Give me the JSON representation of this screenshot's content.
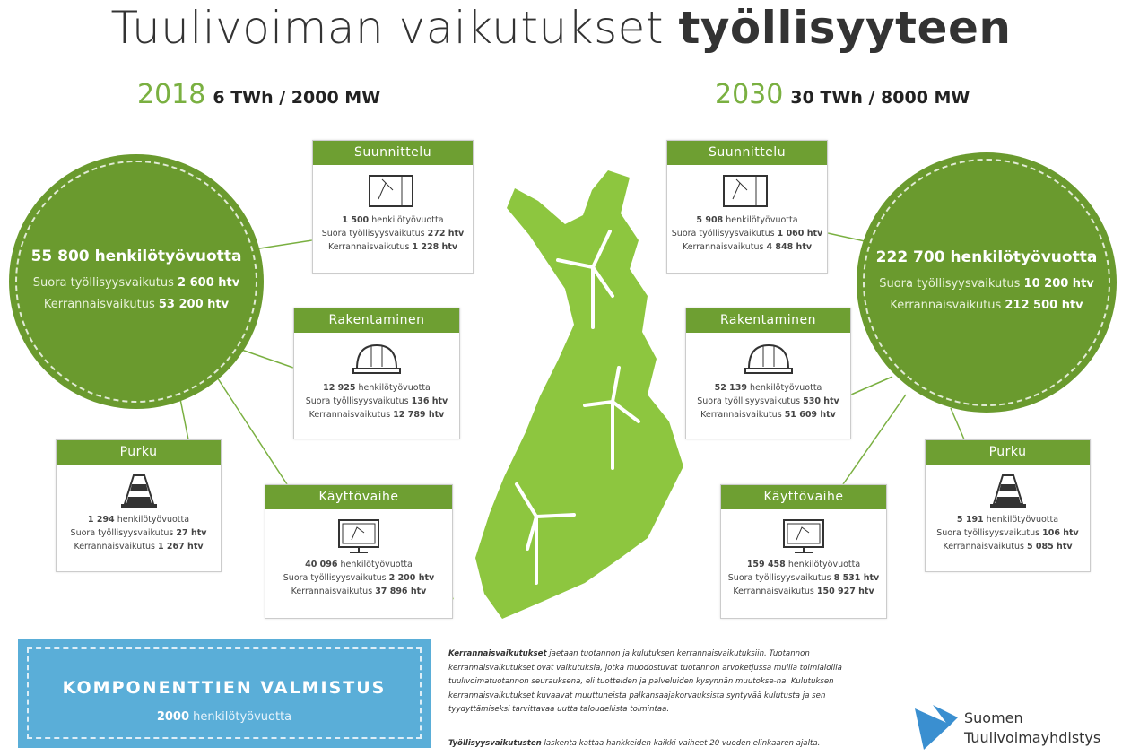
{
  "title": {
    "light": "Tuulivoiman vaikutukset",
    "bold": "työllisyyteen"
  },
  "labels": {
    "person_years": "henkilötyövuotta",
    "direct": "Suora työllisyysvaikutus",
    "indirect": "Kerrannaisvaikutus"
  },
  "scenarios": [
    {
      "year": "2018",
      "capacity": "6 TWh / 2000 MW",
      "total": "55 800",
      "direct": "2 600 htv",
      "indirect": "53 200 htv",
      "phases": [
        {
          "name": "Suunnittelu",
          "total": "1 500",
          "direct": "272 htv",
          "indirect": "1 228 htv"
        },
        {
          "name": "Rakentaminen",
          "total": "12 925",
          "direct": "136 htv",
          "indirect": "12 789 htv"
        },
        {
          "name": "Käyttövaihe",
          "total": "40 096",
          "direct": "2 200 htv",
          "indirect": "37 896 htv"
        },
        {
          "name": "Purku",
          "total": "1 294",
          "direct": "27 htv",
          "indirect": "1 267 htv"
        }
      ]
    },
    {
      "year": "2030",
      "capacity": "30 TWh / 8000 MW",
      "total": "222 700",
      "direct": "10 200 htv",
      "indirect": "212 500 htv",
      "phases": [
        {
          "name": "Suunnittelu",
          "total": "5 908",
          "direct": "1 060 htv",
          "indirect": "4 848 htv"
        },
        {
          "name": "Rakentaminen",
          "total": "52 139",
          "direct": "530 htv",
          "indirect": "51 609 htv"
        },
        {
          "name": "Käyttövaihe",
          "total": "159 458",
          "direct": "8 531 htv",
          "indirect": "150 927 htv"
        },
        {
          "name": "Purku",
          "total": "5 191",
          "direct": "106 htv",
          "indirect": "5 085 htv"
        }
      ]
    }
  ],
  "components": {
    "title": "KOMPONENTTIEN VALMISTUS",
    "value": "2000",
    "unit": "henkilötyövuotta"
  },
  "notes": [
    {
      "bold": "Kerrannaisvaikutukset",
      "text": "jaetaan tuotannon ja kulutuksen kerrannaisvaikutuksiin. Tuotannon kerrannaisvaikutukset ovat vaikutuksia, jotka muodostuvat tuotannon arvoketjussa muilla toimialoilla tuulivoimatuotannon seurauksena, eli tuotteiden ja palveluiden kysynnän muutokse-na. Kulutuksen kerrannaisvaikutukset kuvaavat muuttuneista palkansaajakorvauksista syntyvää kulutusta ja sen tyydyttämiseksi tarvittavaa uutta taloudellista toimintaa."
    },
    {
      "bold": "Työllisyysvaikutusten",
      "text": "laskenta kattaa hankkeiden kaikki vaiheet 20 vuoden elinkaaren ajalta."
    }
  ],
  "logo": {
    "line1": "Suomen",
    "line2": "Tuulivoimayhdistys"
  }
}
